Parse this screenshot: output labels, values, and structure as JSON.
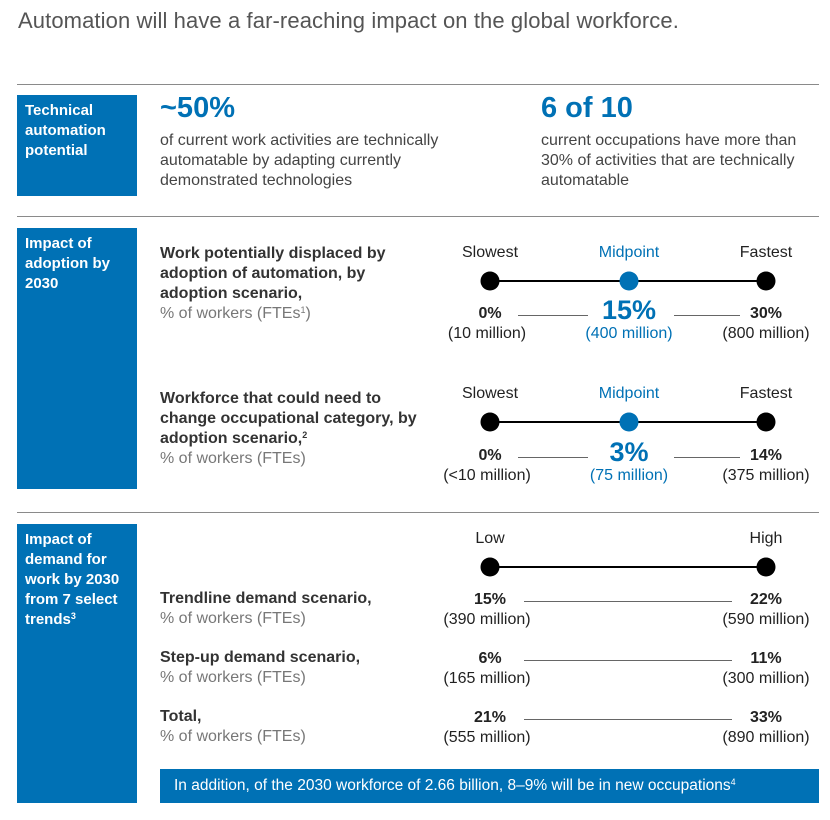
{
  "title": "Automation will have a far-reaching impact on the global workforce.",
  "section1": {
    "side_label": "Technical automation potential",
    "stat1": {
      "value": "~50%",
      "text": "of current work activities are technically automatable by adapting currently demonstrated technologies"
    },
    "stat2": {
      "value": "6 of 10",
      "text": "current occupations have more than 30% of activities that are technically automatable"
    }
  },
  "section2": {
    "side_label": "Impact of adoption by 2030",
    "scale_labels": {
      "slowest": "Slowest",
      "midpoint": "Midpoint",
      "fastest": "Fastest"
    },
    "rows": [
      {
        "header": "Work potentially displaced by adoption of automation, by adoption scenario,",
        "subtitle": "% of workers (FTEs",
        "subtitle_sup": "1",
        "subtitle_end": ")",
        "slowest_pct": "0%",
        "slowest_abs": "(10 million)",
        "mid_pct": "15%",
        "mid_abs": "(400 million)",
        "fastest_pct": "30%",
        "fastest_abs": "(800 million)"
      },
      {
        "header": "Workforce that could need to change occupational category, by adoption scenario,",
        "header_sup": "2",
        "subtitle": "% of workers (FTEs)",
        "slowest_pct": "0%",
        "slowest_abs": "(<10 million)",
        "mid_pct": "3%",
        "mid_abs": "(75 million)",
        "fastest_pct": "14%",
        "fastest_abs": "(375 million)"
      }
    ]
  },
  "section3": {
    "side_label": "Impact of demand for work by 2030 from 7 select trends",
    "side_sup": "3",
    "scale_labels": {
      "low": "Low",
      "high": "High"
    },
    "rows": [
      {
        "header": "Trendline demand scenario,",
        "subtitle": "% of workers (FTEs)",
        "low_pct": "15%",
        "low_abs": "(390 million)",
        "high_pct": "22%",
        "high_abs": "(590 million)"
      },
      {
        "header": "Step-up demand scenario,",
        "subtitle": "% of workers (FTEs)",
        "low_pct": "6%",
        "low_abs": "(165 million)",
        "high_pct": "11%",
        "high_abs": "(300 million)"
      },
      {
        "header": "Total,",
        "subtitle": "% of workers (FTEs)",
        "low_pct": "21%",
        "low_abs": "(555 million)",
        "high_pct": "33%",
        "high_abs": "(890 million)"
      }
    ],
    "banner": "In addition, of the 2030 workforce of 2.66 billion, 8–9% will be in new occupations",
    "banner_sup": "4"
  },
  "colors": {
    "accent": "#0071b5",
    "dot": "#000000",
    "rule": "#8a8a8a"
  }
}
